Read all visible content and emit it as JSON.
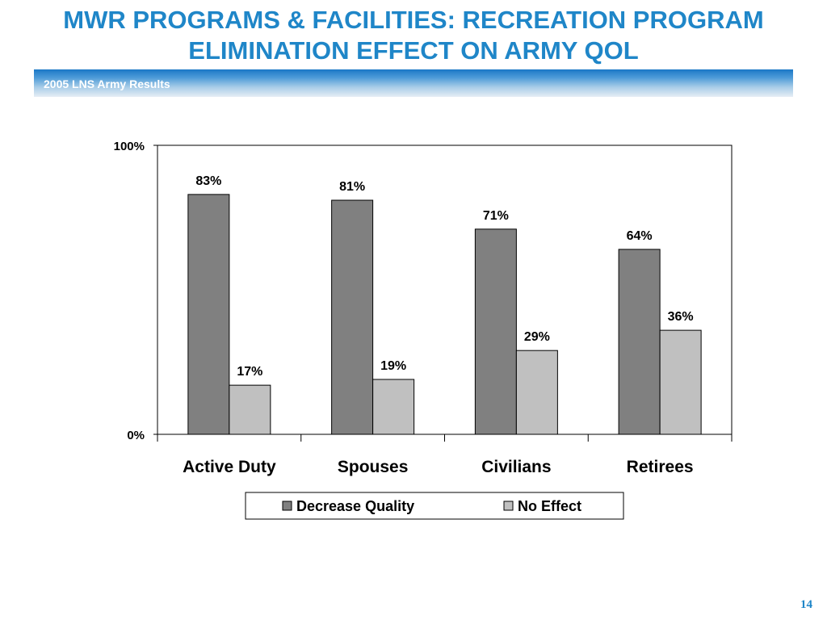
{
  "slide": {
    "title_line1": "MWR PROGRAMS & FACILITIES: RECREATION PROGRAM",
    "title_line2": "ELIMINATION EFFECT ON ARMY QOL",
    "subtitle": "2005 LNS Army Results",
    "page_number": "14"
  },
  "colors": {
    "title": "#1f86c8",
    "decrease_quality": "#808080",
    "no_effect": "#c0c0c0"
  },
  "chart_data": {
    "type": "bar",
    "categories": [
      "Active Duty",
      "Spouses",
      "Civilians",
      "Retirees"
    ],
    "series": [
      {
        "name": "Decrease Quality",
        "values": [
          83,
          81,
          71,
          64
        ],
        "labels": [
          "83%",
          "81%",
          "71%",
          "64%"
        ]
      },
      {
        "name": "No Effect",
        "values": [
          17,
          19,
          29,
          36
        ],
        "labels": [
          "17%",
          "19%",
          "29%",
          "36%"
        ]
      }
    ],
    "ytick_labels": [
      "0%",
      "100%"
    ],
    "ylim": [
      0,
      100
    ],
    "grid": false,
    "legend_position": "bottom"
  }
}
